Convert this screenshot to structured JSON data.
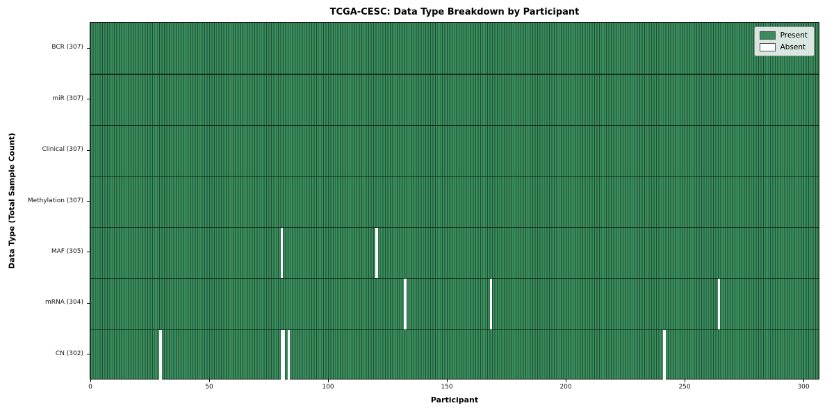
{
  "figure": {
    "title": "TCGA-CESC: Data Type Breakdown by Participant",
    "xlabel": "Participant",
    "ylabel": "Data Type (Total Sample Count)"
  },
  "legend": {
    "items": [
      {
        "label": "Present"
      },
      {
        "label": "Absent"
      }
    ]
  },
  "chart_data": {
    "type": "heatmap",
    "title": "TCGA-CESC: Data Type Breakdown by Participant",
    "xlabel": "Participant",
    "ylabel": "Data Type (Total Sample Count)",
    "n_participants": 307,
    "x_ticks": [
      0,
      50,
      100,
      150,
      200,
      250,
      300
    ],
    "xlim": [
      0,
      307
    ],
    "grid": false,
    "legend_entries": [
      "Present",
      "Absent"
    ],
    "legend_position": "upper right",
    "rows": [
      {
        "label": "BCR (307)",
        "data_type": "BCR",
        "present_count": 307,
        "absent_participants": []
      },
      {
        "label": "miR (307)",
        "data_type": "miR",
        "present_count": 307,
        "absent_participants": []
      },
      {
        "label": "Clinical (307)",
        "data_type": "Clinical",
        "present_count": 307,
        "absent_participants": []
      },
      {
        "label": "Methylation (307)",
        "data_type": "Methylation",
        "present_count": 307,
        "absent_participants": []
      },
      {
        "label": "MAF (305)",
        "data_type": "MAF",
        "present_count": 305,
        "absent_participants": [
          80,
          120
        ]
      },
      {
        "label": "mRNA (304)",
        "data_type": "mRNA",
        "present_count": 304,
        "absent_participants": [
          132,
          168,
          264
        ]
      },
      {
        "label": "CN (302)",
        "data_type": "CN",
        "present_count": 302,
        "absent_participants": [
          29,
          80,
          81,
          83,
          241
        ]
      }
    ],
    "colors": {
      "present": "#3b8c5d",
      "absent": "#ffffff",
      "bar_edge": "#1b4d32",
      "row_divider": "rgba(0,0,0,0.65)",
      "plot_border": "#000000"
    }
  }
}
